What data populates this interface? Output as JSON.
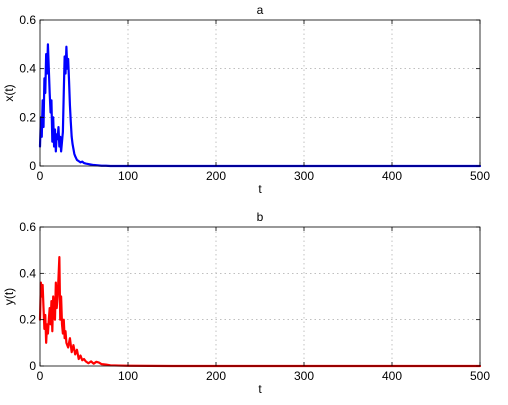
{
  "chart_data": [
    {
      "type": "line",
      "title": "a",
      "xlabel": "t",
      "ylabel": "x(t)",
      "xlim": [
        0,
        500
      ],
      "ylim": [
        0,
        0.6
      ],
      "xticks": [
        "0",
        "100",
        "200",
        "300",
        "400",
        "500"
      ],
      "yticks": [
        "0",
        "0.2",
        "0.4",
        "0.6"
      ],
      "grid": true,
      "series": [
        {
          "color": "#0000ff",
          "x": [
            0,
            1,
            2,
            3,
            4,
            5,
            6,
            7,
            8,
            9,
            10,
            11,
            12,
            13,
            14,
            15,
            16,
            17,
            18,
            19,
            20,
            21,
            22,
            23,
            24,
            25,
            26,
            27,
            28,
            29,
            30,
            31,
            32,
            33,
            34,
            35,
            36,
            37,
            38,
            39,
            40,
            42,
            44,
            46,
            48,
            50,
            52,
            55,
            58,
            61,
            64,
            67,
            70,
            75,
            80,
            90,
            100,
            150,
            200,
            250,
            300,
            350,
            400,
            450,
            500
          ],
          "y": [
            0.08,
            0.2,
            0.12,
            0.27,
            0.16,
            0.36,
            0.3,
            0.46,
            0.38,
            0.5,
            0.4,
            0.3,
            0.22,
            0.27,
            0.1,
            0.2,
            0.08,
            0.15,
            0.06,
            0.13,
            0.11,
            0.16,
            0.08,
            0.12,
            0.06,
            0.1,
            0.14,
            0.3,
            0.45,
            0.38,
            0.49,
            0.4,
            0.44,
            0.35,
            0.25,
            0.18,
            0.12,
            0.09,
            0.07,
            0.05,
            0.04,
            0.025,
            0.02,
            0.015,
            0.018,
            0.012,
            0.01,
            0.008,
            0.006,
            0.004,
            0.003,
            0.002,
            0.001,
            0.001,
            0.0,
            0.0,
            0.0,
            0.0,
            0.0,
            0.0,
            0.0,
            0.0,
            0.0,
            0.0,
            0.0
          ]
        }
      ]
    },
    {
      "type": "line",
      "title": "b",
      "xlabel": "t",
      "ylabel": "y(t)",
      "xlim": [
        0,
        500
      ],
      "ylim": [
        0,
        0.6
      ],
      "xticks": [
        "0",
        "100",
        "200",
        "300",
        "400",
        "500"
      ],
      "yticks": [
        "0",
        "0.2",
        "0.4",
        "0.6"
      ],
      "grid": true,
      "series": [
        {
          "color": "#ff0000",
          "x": [
            0,
            1,
            2,
            3,
            4,
            5,
            6,
            7,
            8,
            9,
            10,
            11,
            12,
            13,
            14,
            15,
            16,
            17,
            18,
            19,
            20,
            21,
            22,
            23,
            24,
            25,
            26,
            27,
            28,
            29,
            30,
            32,
            34,
            36,
            38,
            40,
            42,
            44,
            46,
            48,
            50,
            52,
            55,
            58,
            61,
            64,
            67,
            70,
            75,
            80,
            90,
            100,
            150,
            200,
            250,
            300,
            350,
            400,
            450,
            500
          ],
          "y": [
            0.2,
            0.36,
            0.3,
            0.35,
            0.25,
            0.16,
            0.22,
            0.1,
            0.18,
            0.14,
            0.2,
            0.25,
            0.18,
            0.28,
            0.15,
            0.3,
            0.22,
            0.2,
            0.36,
            0.25,
            0.3,
            0.38,
            0.47,
            0.2,
            0.3,
            0.18,
            0.14,
            0.2,
            0.12,
            0.15,
            0.1,
            0.08,
            0.12,
            0.06,
            0.09,
            0.05,
            0.07,
            0.03,
            0.045,
            0.025,
            0.03,
            0.02,
            0.012,
            0.02,
            0.01,
            0.018,
            0.015,
            0.008,
            0.006,
            0.003,
            0.002,
            0.001,
            0.0,
            0.0,
            0.0,
            0.0,
            0.0,
            0.0,
            0.0,
            0.0
          ]
        }
      ]
    }
  ]
}
